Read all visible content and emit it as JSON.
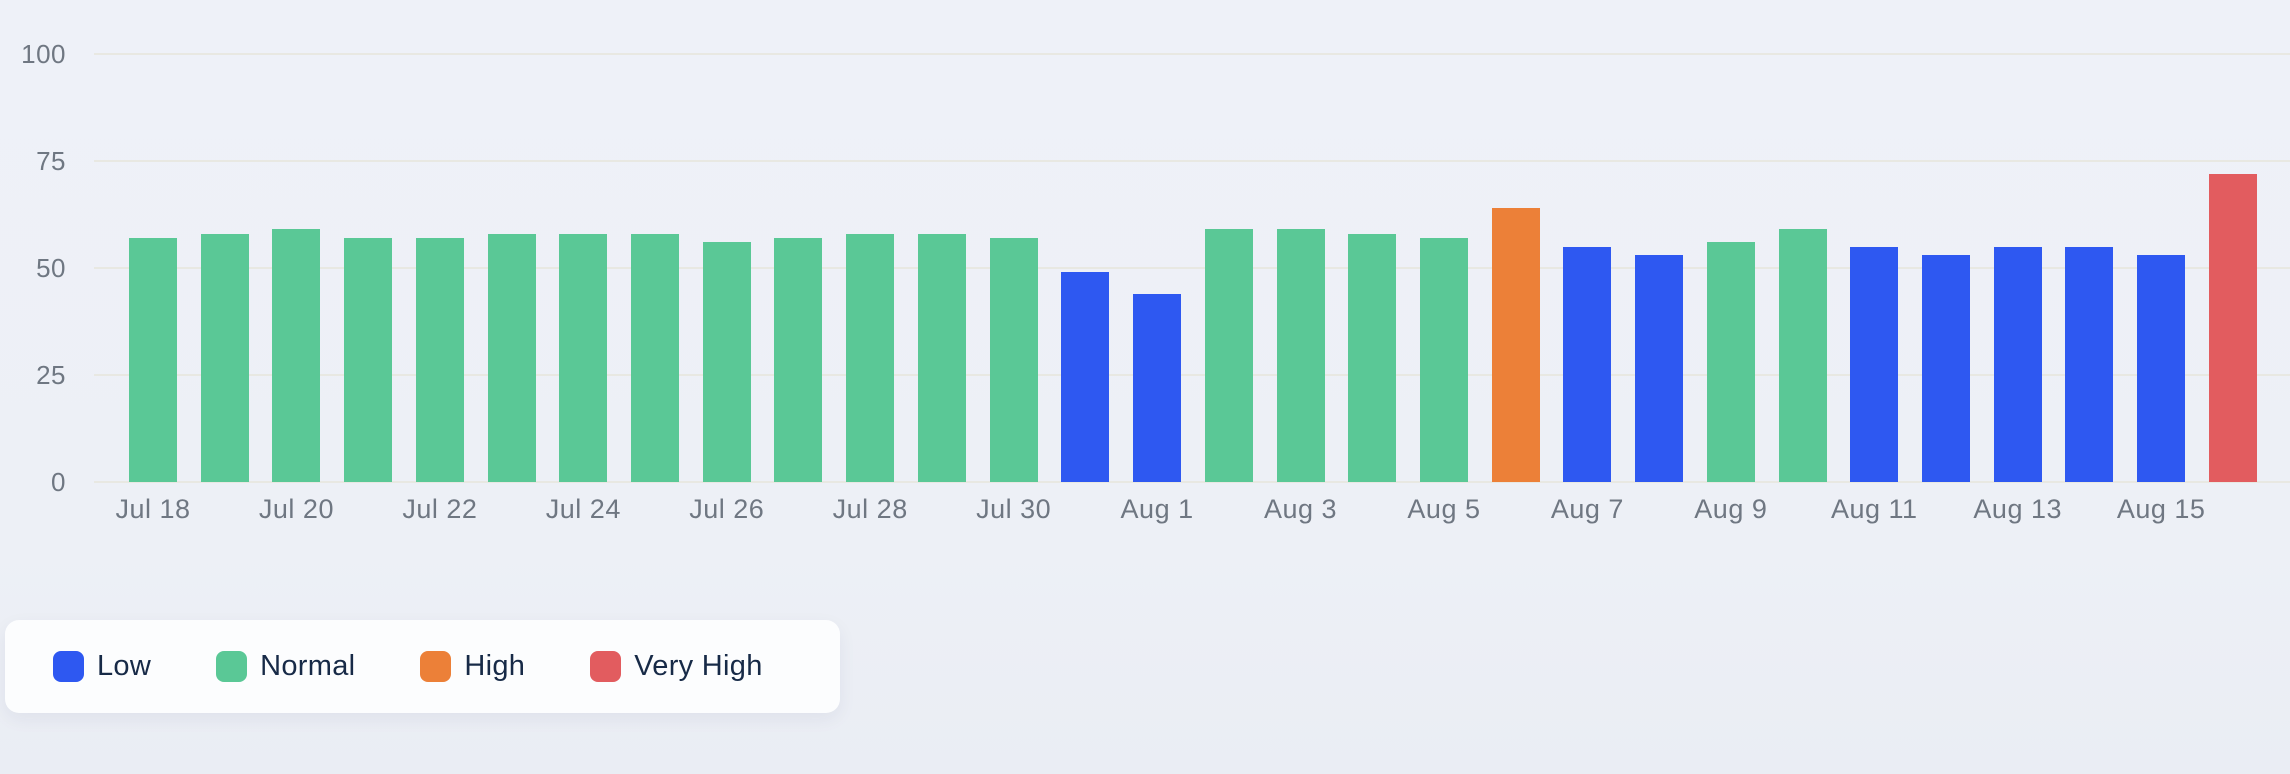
{
  "chart_data": {
    "type": "bar",
    "title": "",
    "xlabel": "",
    "ylabel": "",
    "x": [
      "Jul 18",
      "Jul 19",
      "Jul 20",
      "Jul 21",
      "Jul 22",
      "Jul 23",
      "Jul 24",
      "Jul 25",
      "Jul 26",
      "Jul 27",
      "Jul 28",
      "Jul 29",
      "Jul 30",
      "Jul 31",
      "Aug 1",
      "Aug 2",
      "Aug 3",
      "Aug 4",
      "Aug 5",
      "Aug 6",
      "Aug 7",
      "Aug 8",
      "Aug 9",
      "Aug 10",
      "Aug 11",
      "Aug 12",
      "Aug 13",
      "Aug 14",
      "Aug 15",
      "Aug 16"
    ],
    "values": [
      57,
      58,
      59,
      57,
      57,
      58,
      58,
      58,
      56,
      57,
      58,
      58,
      57,
      49,
      44,
      59,
      59,
      58,
      57,
      64,
      55,
      53,
      56,
      59,
      55,
      53,
      55,
      55,
      53,
      72
    ],
    "categories": [
      "normal",
      "normal",
      "normal",
      "normal",
      "normal",
      "normal",
      "normal",
      "normal",
      "normal",
      "normal",
      "normal",
      "normal",
      "normal",
      "low",
      "low",
      "normal",
      "normal",
      "normal",
      "normal",
      "high",
      "low",
      "low",
      "normal",
      "normal",
      "low",
      "low",
      "low",
      "low",
      "low",
      "very_high"
    ],
    "x_tick_labels": [
      "Jul 18",
      "Jul 20",
      "Jul 22",
      "Jul 24",
      "Jul 26",
      "Jul 28",
      "Jul 30",
      "Aug 1",
      "Aug 3",
      "Aug 5",
      "Aug 7",
      "Aug 9",
      "Aug 11",
      "Aug 13",
      "Aug 15"
    ],
    "x_tick_every": 2,
    "y_ticks": [
      "0",
      "25",
      "50",
      "75",
      "100"
    ],
    "ylim": [
      0,
      100
    ],
    "grid": "horizontal",
    "legend_position": "bottom-left"
  },
  "legend": {
    "items": [
      {
        "key": "low",
        "label": "Low",
        "color": "#2e58f1"
      },
      {
        "key": "normal",
        "label": "Normal",
        "color": "#5ac896"
      },
      {
        "key": "high",
        "label": "High",
        "color": "#ec8038"
      },
      {
        "key": "very_high",
        "label": "Very High",
        "color": "#e25c5f"
      }
    ]
  },
  "colors": {
    "low": "#2e58f1",
    "normal": "#5ac896",
    "high": "#ec8038",
    "very_high": "#e25c5f",
    "gridline": "#e8e8e2",
    "axis_text": "#6f7782",
    "legend_text": "#172a47",
    "background": "#edf0f6",
    "legend_card_bg": "#fcfdfe"
  }
}
